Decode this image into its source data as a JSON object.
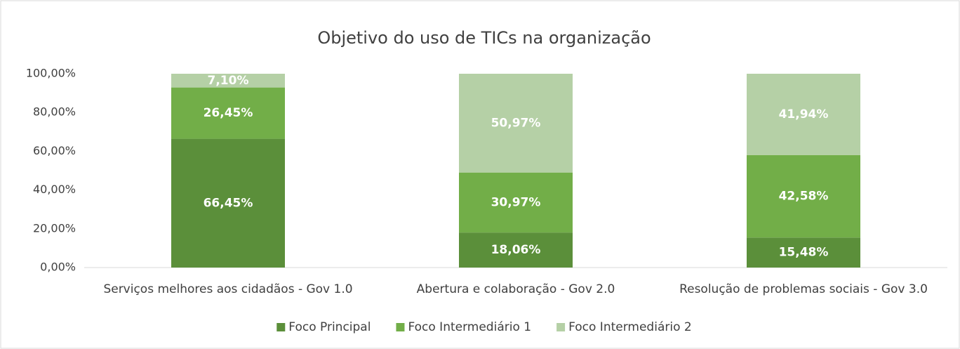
{
  "chart_data": {
    "type": "stacked_bar",
    "title": "Objetivo do uso de TICs na organização",
    "categories": [
      "Serviços melhores aos cidadãos - Gov 1.0",
      "Abertura e colaboração - Gov 2.0",
      "Resolução de problemas sociais - Gov 3.0"
    ],
    "series": [
      {
        "name": "Foco Principal",
        "color": "#5b8f3a",
        "values": [
          66.45,
          18.06,
          15.48
        ],
        "value_labels": [
          "66,45%",
          "18,06%",
          "15,48%"
        ]
      },
      {
        "name": "Foco Intermediário 1",
        "color": "#72ae48",
        "values": [
          26.45,
          30.97,
          42.58
        ],
        "value_labels": [
          "26,45%",
          "30,97%",
          "42,58%"
        ]
      },
      {
        "name": "Foco Intermediário 2",
        "color": "#b5d0a6",
        "values": [
          7.1,
          50.97,
          41.94
        ],
        "value_labels": [
          "7,10%",
          "50,97%",
          "41,94%"
        ]
      }
    ],
    "ylim": [
      0,
      100
    ],
    "yticks": [
      {
        "value": 0,
        "label": "0,00%"
      },
      {
        "value": 20,
        "label": "20,00%"
      },
      {
        "value": 40,
        "label": "40,00%"
      },
      {
        "value": 60,
        "label": "60,00%"
      },
      {
        "value": 80,
        "label": "80,00%"
      },
      {
        "value": 100,
        "label": "100,00%"
      }
    ],
    "grid": false,
    "legend": "bottom"
  }
}
